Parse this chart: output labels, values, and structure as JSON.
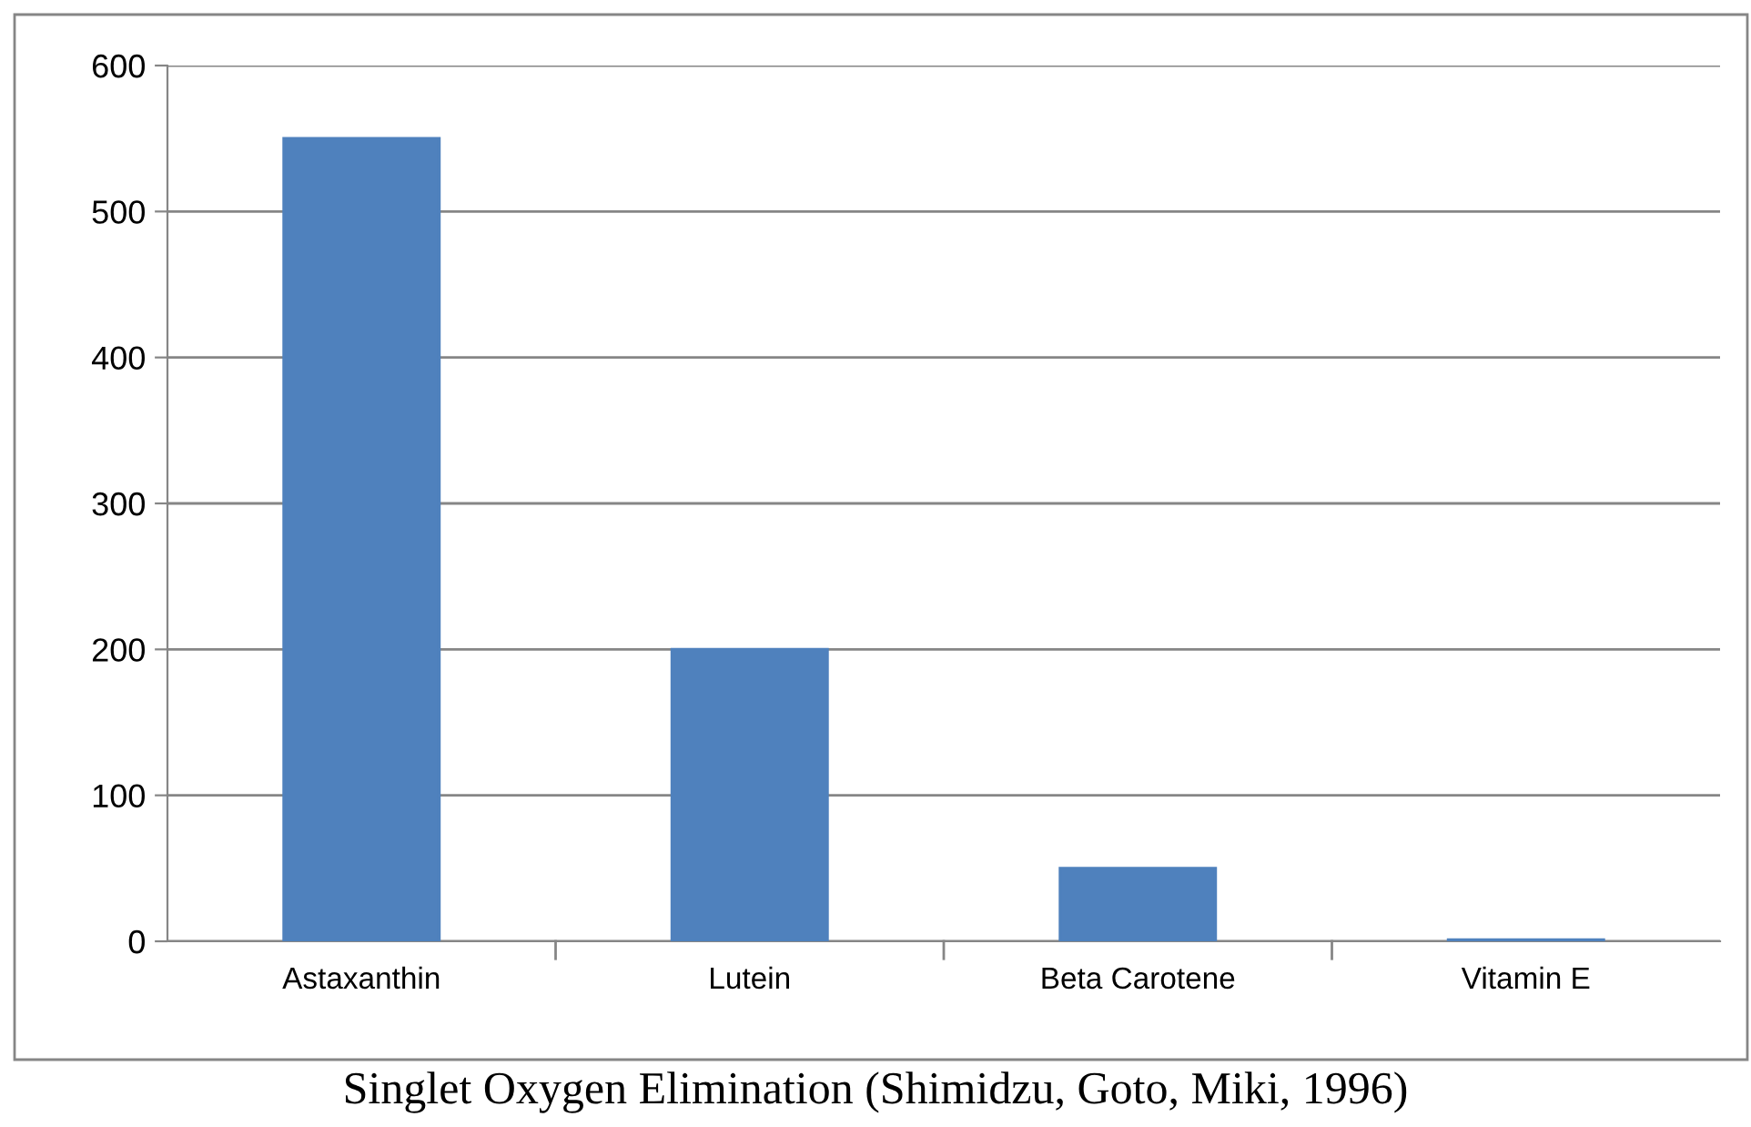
{
  "chart_data": {
    "type": "bar",
    "categories": [
      "Astaxanthin",
      "Lutein",
      "Beta Carotene",
      "Vitamin E"
    ],
    "values": [
      550,
      200,
      50,
      1
    ],
    "color": "#4f81bd",
    "ylim": [
      0,
      600
    ],
    "yticks": [
      0,
      100,
      200,
      300,
      400,
      500,
      600
    ],
    "grid": "y",
    "legend": false,
    "annotations": [
      "Singlet Oxygen Elimination (Shimidzu, Goto, Miki, 1996)"
    ]
  }
}
